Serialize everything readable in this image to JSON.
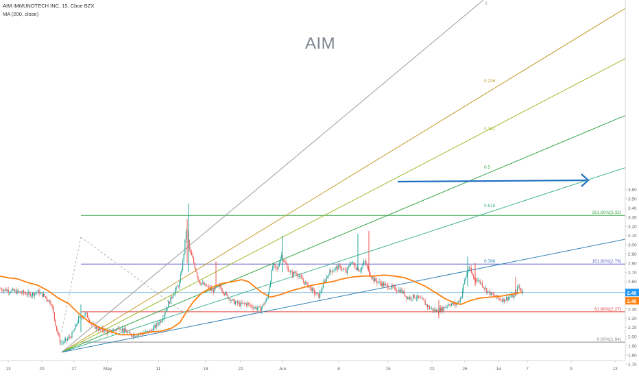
{
  "header": {
    "symbol_line": "AIM IMMUNOTECH INC, 15, Cboe BZX",
    "indicator_line": "MA (200, close)"
  },
  "watermark": "AIM",
  "price_badges": {
    "last": "2.48",
    "ma": "2.48"
  },
  "colors": {
    "up": "#26a69a",
    "down": "#ef5350",
    "ma": "#ff7f0e",
    "arrow": "#1f6fbf",
    "fib_top": "#3aa64d",
    "fib_161": "#5b5bc7",
    "fib_618": "#e0413d",
    "fib_0": "#888888",
    "last_line": "#5aa0d8",
    "badge_last": "#2196f3",
    "badge_ma": "#ff7f0e"
  },
  "chart_data": {
    "type": "candlestick",
    "x_ticks": [
      "13",
      "20",
      "27",
      "May",
      "11",
      "18",
      "22",
      "Jun",
      "8",
      "15",
      "22",
      "26",
      "Jul",
      "7",
      "9",
      "13"
    ],
    "y_ticks": [
      "1.70",
      "1.80",
      "1.90",
      "2.00",
      "2.10",
      "2.20",
      "2.30",
      "2.40",
      "2.50",
      "2.60",
      "2.70",
      "2.80",
      "2.90",
      "3.00",
      "3.10",
      "3.20",
      "3.30",
      "3.40",
      "3.50",
      "3.60"
    ],
    "ylim": [
      1.66,
      3.65
    ],
    "fib_retracement": [
      {
        "label": "261.80%(3.32)",
        "value": 3.32
      },
      {
        "label": "161.80%(2.79)",
        "value": 2.79
      },
      {
        "label": "61.80%(2.27)",
        "value": 2.27
      },
      {
        "label": "0.00%(1.94)",
        "value": 1.94
      }
    ],
    "fib_fan_labels": [
      "0",
      "0.236",
      "0.382",
      "0.5",
      "0.618",
      "0.786"
    ],
    "last_price": 2.48,
    "ma_price": 2.48,
    "price_path": [
      [
        0,
        2.52
      ],
      [
        15,
        2.5
      ],
      [
        30,
        2.48
      ],
      [
        45,
        2.46
      ],
      [
        55,
        2.49
      ],
      [
        65,
        2.44
      ],
      [
        75,
        2.36
      ],
      [
        82,
        2.1
      ],
      [
        88,
        1.93
      ],
      [
        95,
        1.95
      ],
      [
        105,
        2.02
      ],
      [
        115,
        2.2
      ],
      [
        125,
        2.25
      ],
      [
        135,
        2.12
      ],
      [
        145,
        2.08
      ],
      [
        160,
        2.05
      ],
      [
        175,
        2.1
      ],
      [
        190,
        2.02
      ],
      [
        205,
        2.03
      ],
      [
        220,
        2.06
      ],
      [
        235,
        2.18
      ],
      [
        245,
        2.35
      ],
      [
        255,
        2.5
      ],
      [
        262,
        2.58
      ],
      [
        268,
        2.9
      ],
      [
        272,
        3.2
      ],
      [
        276,
        2.95
      ],
      [
        282,
        2.82
      ],
      [
        290,
        2.6
      ],
      [
        300,
        2.55
      ],
      [
        310,
        2.5
      ],
      [
        320,
        2.55
      ],
      [
        330,
        2.45
      ],
      [
        340,
        2.38
      ],
      [
        350,
        2.35
      ],
      [
        360,
        2.36
      ],
      [
        370,
        2.32
      ],
      [
        380,
        2.3
      ],
      [
        390,
        2.42
      ],
      [
        398,
        2.78
      ],
      [
        404,
        2.72
      ],
      [
        410,
        2.9
      ],
      [
        418,
        2.76
      ],
      [
        425,
        2.68
      ],
      [
        432,
        2.7
      ],
      [
        440,
        2.62
      ],
      [
        450,
        2.55
      ],
      [
        458,
        2.48
      ],
      [
        465,
        2.44
      ],
      [
        472,
        2.58
      ],
      [
        480,
        2.7
      ],
      [
        488,
        2.74
      ],
      [
        496,
        2.76
      ],
      [
        505,
        2.7
      ],
      [
        512,
        2.82
      ],
      [
        518,
        2.76
      ],
      [
        525,
        2.72
      ],
      [
        532,
        2.82
      ],
      [
        538,
        2.7
      ],
      [
        545,
        2.62
      ],
      [
        555,
        2.58
      ],
      [
        565,
        2.55
      ],
      [
        575,
        2.52
      ],
      [
        585,
        2.5
      ],
      [
        595,
        2.42
      ],
      [
        605,
        2.44
      ],
      [
        615,
        2.4
      ],
      [
        625,
        2.32
      ],
      [
        635,
        2.28
      ],
      [
        645,
        2.3
      ],
      [
        655,
        2.36
      ],
      [
        665,
        2.35
      ],
      [
        672,
        2.42
      ],
      [
        678,
        2.62
      ],
      [
        684,
        2.76
      ],
      [
        690,
        2.64
      ],
      [
        696,
        2.62
      ],
      [
        702,
        2.58
      ],
      [
        710,
        2.5
      ],
      [
        718,
        2.45
      ],
      [
        726,
        2.42
      ],
      [
        734,
        2.4
      ],
      [
        742,
        2.43
      ],
      [
        750,
        2.44
      ],
      [
        756,
        2.55
      ],
      [
        760,
        2.5
      ],
      [
        764,
        2.48
      ]
    ],
    "ma_path": [
      [
        0,
        2.66
      ],
      [
        12,
        2.64
      ],
      [
        25,
        2.63
      ],
      [
        40,
        2.59
      ],
      [
        55,
        2.56
      ],
      [
        70,
        2.5
      ],
      [
        85,
        2.42
      ],
      [
        100,
        2.36
      ],
      [
        115,
        2.25
      ],
      [
        130,
        2.16
      ],
      [
        145,
        2.1
      ],
      [
        160,
        2.06
      ],
      [
        175,
        2.02
      ],
      [
        190,
        2.02
      ],
      [
        205,
        2.03
      ],
      [
        220,
        2.05
      ],
      [
        235,
        2.06
      ],
      [
        250,
        2.09
      ],
      [
        262,
        2.15
      ],
      [
        272,
        2.27
      ],
      [
        282,
        2.38
      ],
      [
        295,
        2.48
      ],
      [
        310,
        2.54
      ],
      [
        325,
        2.58
      ],
      [
        340,
        2.6
      ],
      [
        352,
        2.62
      ],
      [
        362,
        2.6
      ],
      [
        372,
        2.54
      ],
      [
        382,
        2.48
      ],
      [
        395,
        2.43
      ],
      [
        410,
        2.46
      ],
      [
        425,
        2.5
      ],
      [
        440,
        2.53
      ],
      [
        455,
        2.56
      ],
      [
        470,
        2.58
      ],
      [
        485,
        2.6
      ],
      [
        500,
        2.63
      ],
      [
        515,
        2.65
      ],
      [
        530,
        2.66
      ],
      [
        545,
        2.66
      ],
      [
        560,
        2.67
      ],
      [
        575,
        2.66
      ],
      [
        590,
        2.64
      ],
      [
        605,
        2.6
      ],
      [
        620,
        2.55
      ],
      [
        635,
        2.48
      ],
      [
        650,
        2.41
      ],
      [
        662,
        2.37
      ],
      [
        672,
        2.35
      ],
      [
        685,
        2.39
      ],
      [
        700,
        2.42
      ],
      [
        715,
        2.43
      ],
      [
        730,
        2.44
      ],
      [
        745,
        2.46
      ],
      [
        760,
        2.48
      ]
    ]
  }
}
